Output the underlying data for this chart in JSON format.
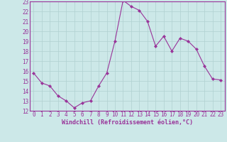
{
  "x": [
    0,
    1,
    2,
    3,
    4,
    5,
    6,
    7,
    8,
    9,
    10,
    11,
    12,
    13,
    14,
    15,
    16,
    17,
    18,
    19,
    20,
    21,
    22,
    23
  ],
  "y": [
    15.8,
    14.8,
    14.5,
    13.5,
    13.0,
    12.3,
    12.8,
    13.0,
    14.5,
    15.8,
    19.0,
    23.1,
    22.5,
    22.1,
    21.0,
    18.5,
    19.5,
    18.0,
    19.3,
    19.0,
    18.2,
    16.5,
    15.2,
    15.1
  ],
  "line_color": "#993399",
  "marker": "D",
  "marker_size": 2.2,
  "bg_color": "#cce8e8",
  "grid_color": "#b0d0d0",
  "xlabel": "Windchill (Refroidissement éolien,°C)",
  "xlabel_color": "#993399",
  "tick_color": "#993399",
  "spine_color": "#993399",
  "ylim": [
    12,
    23
  ],
  "xlim": [
    -0.5,
    23.5
  ],
  "yticks": [
    12,
    13,
    14,
    15,
    16,
    17,
    18,
    19,
    20,
    21,
    22,
    23
  ],
  "xticks": [
    0,
    1,
    2,
    3,
    4,
    5,
    6,
    7,
    8,
    9,
    10,
    11,
    12,
    13,
    14,
    15,
    16,
    17,
    18,
    19,
    20,
    21,
    22,
    23
  ],
  "tick_fontsize": 5.5,
  "xlabel_fontsize": 6.0
}
